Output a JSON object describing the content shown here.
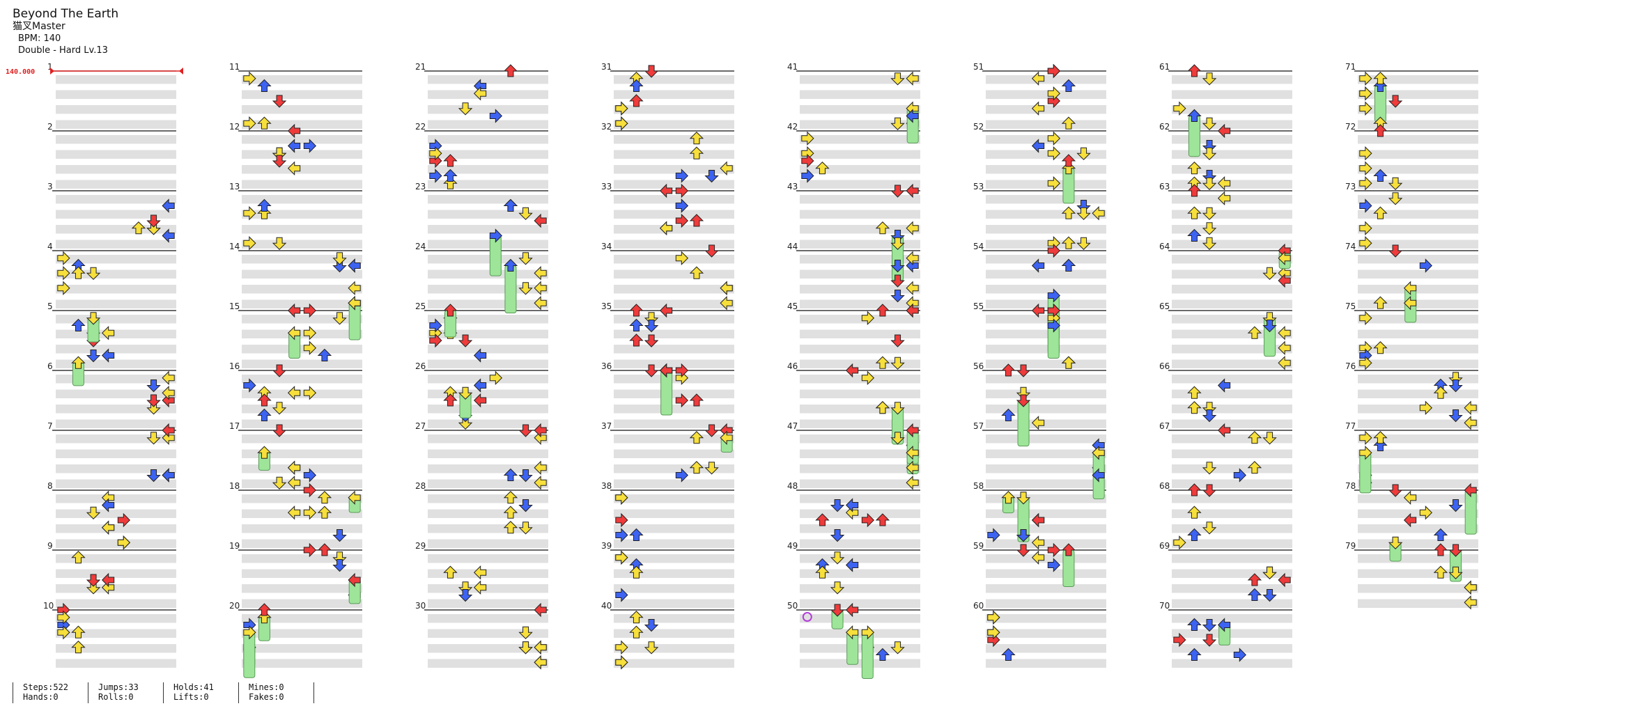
{
  "header": {
    "title": "Beyond The Earth",
    "artist": "猫叉Master",
    "bpm": "BPM: 140",
    "difficulty": "Double - Hard Lv.13"
  },
  "bpm_marker": {
    "text": "140.000",
    "measure": 1
  },
  "colors": {
    "red": "#ef3b3b",
    "blue": "#3d63f2",
    "yellow": "#f7df3c",
    "hold_green": "#9ee59a",
    "band_gray": "#e0e0e0",
    "mine_purple": "#b23cd8"
  },
  "chart": {
    "measures_total": 79,
    "measures_per_column": 10,
    "columns": 8,
    "panels": 8,
    "rows_per_measure": 4,
    "icon_names": [
      "left-arrow-icon",
      "down-arrow-icon",
      "up-arrow-icon",
      "right-arrow-icon",
      "hold-note-icon",
      "mine-icon"
    ]
  },
  "stats": [
    {
      "label1": "Steps:522",
      "label2": "Hands:0"
    },
    {
      "label1": "Jumps:33",
      "label2": "Rolls:0"
    },
    {
      "label1": "Holds:41",
      "label2": "Lifts:0"
    },
    {
      "label1": "Mines:0",
      "label2": "Fakes:0"
    }
  ]
}
